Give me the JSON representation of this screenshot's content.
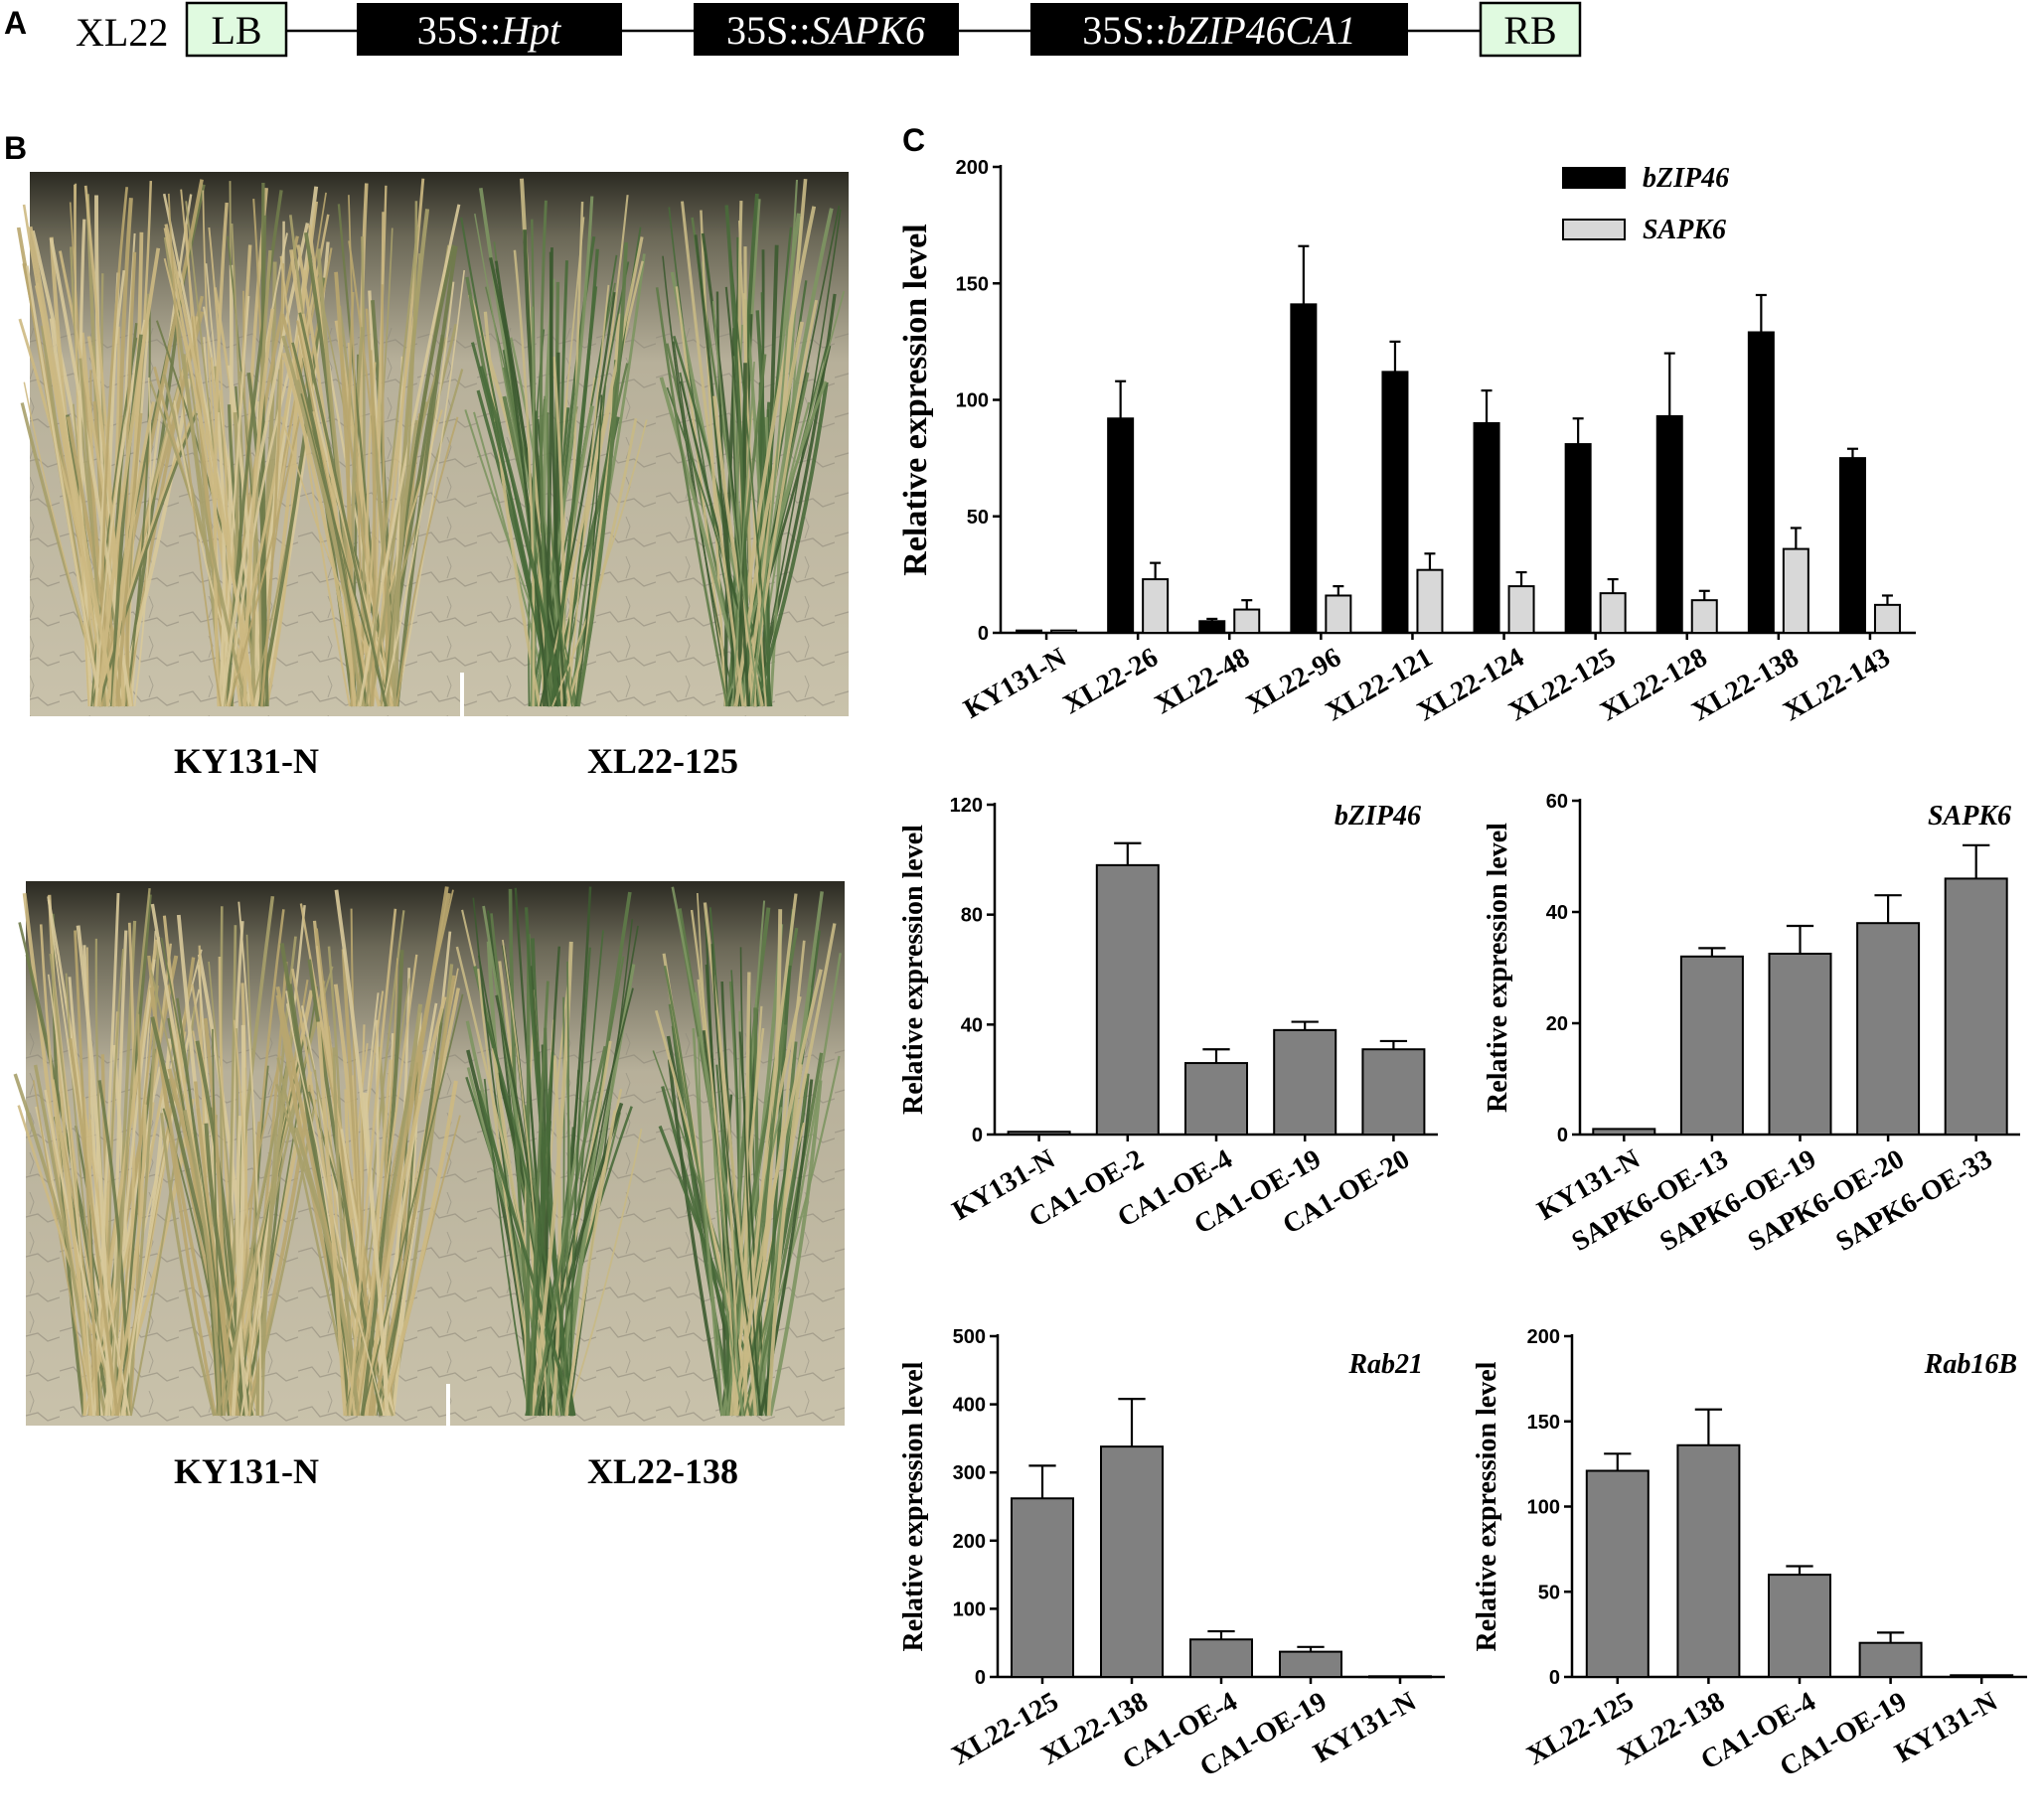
{
  "panels": {
    "a": "A",
    "b": "B",
    "c": "C"
  },
  "construct": {
    "name": "XL22",
    "lb": "LB",
    "rb": "RB",
    "cassettes": [
      {
        "prefix": "35S::",
        "gene": "Hpt"
      },
      {
        "prefix": "35S::",
        "gene": "SAPK6"
      },
      {
        "prefix": "35S::",
        "gene": "bZIP46CA1"
      }
    ]
  },
  "photos": {
    "top": {
      "left_label": "KY131-N",
      "right_label": "XL22-125"
    },
    "bottom": {
      "left_label": "KY131-N",
      "right_label": "XL22-138"
    }
  },
  "colors": {
    "black_bar": "#000000",
    "light_bar": "#d8d8d8",
    "gray_bar": "#808080",
    "lb_rb_box": "#e0fae0"
  },
  "chart_data": [
    {
      "type": "bar",
      "title": "",
      "ylabel": "Relative expression level",
      "xlabel": "",
      "ylim": [
        0,
        200
      ],
      "yticks": [
        0,
        50,
        100,
        150,
        200
      ],
      "legend": "top-right",
      "categories": [
        "KY131-N",
        "XL22-26",
        "XL22-48",
        "XL22-96",
        "XL22-121",
        "XL22-124",
        "XL22-125",
        "XL22-128",
        "XL22-138",
        "XL22-143"
      ],
      "series": [
        {
          "name": "bZIP46",
          "color": "#000000",
          "values": [
            1,
            92,
            5,
            141,
            112,
            90,
            81,
            93,
            129,
            75
          ],
          "errors": [
            0,
            16,
            1,
            25,
            13,
            14,
            11,
            27,
            16,
            4
          ]
        },
        {
          "name": "SAPK6",
          "color": "#d8d8d8",
          "values": [
            1,
            23,
            10,
            16,
            27,
            20,
            17,
            14,
            36,
            12
          ],
          "errors": [
            0,
            7,
            4,
            4,
            7,
            6,
            6,
            4,
            9,
            4
          ]
        }
      ]
    },
    {
      "type": "bar",
      "title": "bZIP46",
      "ylabel": "Relative expression level",
      "xlabel": "",
      "ylim": [
        0,
        120
      ],
      "yticks": [
        0,
        40,
        80,
        120
      ],
      "categories": [
        "KY131-N",
        "CA1-OE-2",
        "CA1-OE-4",
        "CA1-OE-19",
        "CA1-OE-20"
      ],
      "series": [
        {
          "name": "",
          "color": "#808080",
          "values": [
            1,
            98,
            26,
            38,
            31
          ],
          "errors": [
            0,
            8,
            5,
            3,
            3
          ]
        }
      ]
    },
    {
      "type": "bar",
      "title": "SAPK6",
      "ylabel": "Relative expression level",
      "xlabel": "",
      "ylim": [
        0,
        60
      ],
      "yticks": [
        0,
        20,
        40,
        60
      ],
      "categories": [
        "KY131-N",
        "SAPK6-OE-13",
        "SAPK6-OE-19",
        "SAPK6-OE-20",
        "SAPK6-OE-33"
      ],
      "series": [
        {
          "name": "",
          "color": "#808080",
          "values": [
            1,
            32,
            32.5,
            38,
            46
          ],
          "errors": [
            0,
            1.5,
            5,
            5,
            6
          ]
        }
      ]
    },
    {
      "type": "bar",
      "title": "Rab21",
      "ylabel": "Relative expression level",
      "xlabel": "",
      "ylim": [
        0,
        500
      ],
      "yticks": [
        0,
        100,
        200,
        300,
        400,
        500
      ],
      "categories": [
        "XL22-125",
        "XL22-138",
        "CA1-OE-4",
        "CA1-OE-19",
        "KY131-N"
      ],
      "series": [
        {
          "name": "",
          "color": "#808080",
          "values": [
            262,
            338,
            55,
            37,
            1
          ],
          "errors": [
            48,
            70,
            12,
            7,
            0
          ]
        }
      ]
    },
    {
      "type": "bar",
      "title": "Rab16B",
      "ylabel": "Relative expression level",
      "xlabel": "",
      "ylim": [
        0,
        200
      ],
      "yticks": [
        0,
        50,
        100,
        150,
        200
      ],
      "categories": [
        "XL22-125",
        "XL22-138",
        "CA1-OE-4",
        "CA1-OE-19",
        "KY131-N"
      ],
      "series": [
        {
          "name": "",
          "color": "#808080",
          "values": [
            121,
            136,
            60,
            20,
            1
          ],
          "errors": [
            10,
            21,
            5,
            6,
            0
          ]
        }
      ]
    }
  ]
}
